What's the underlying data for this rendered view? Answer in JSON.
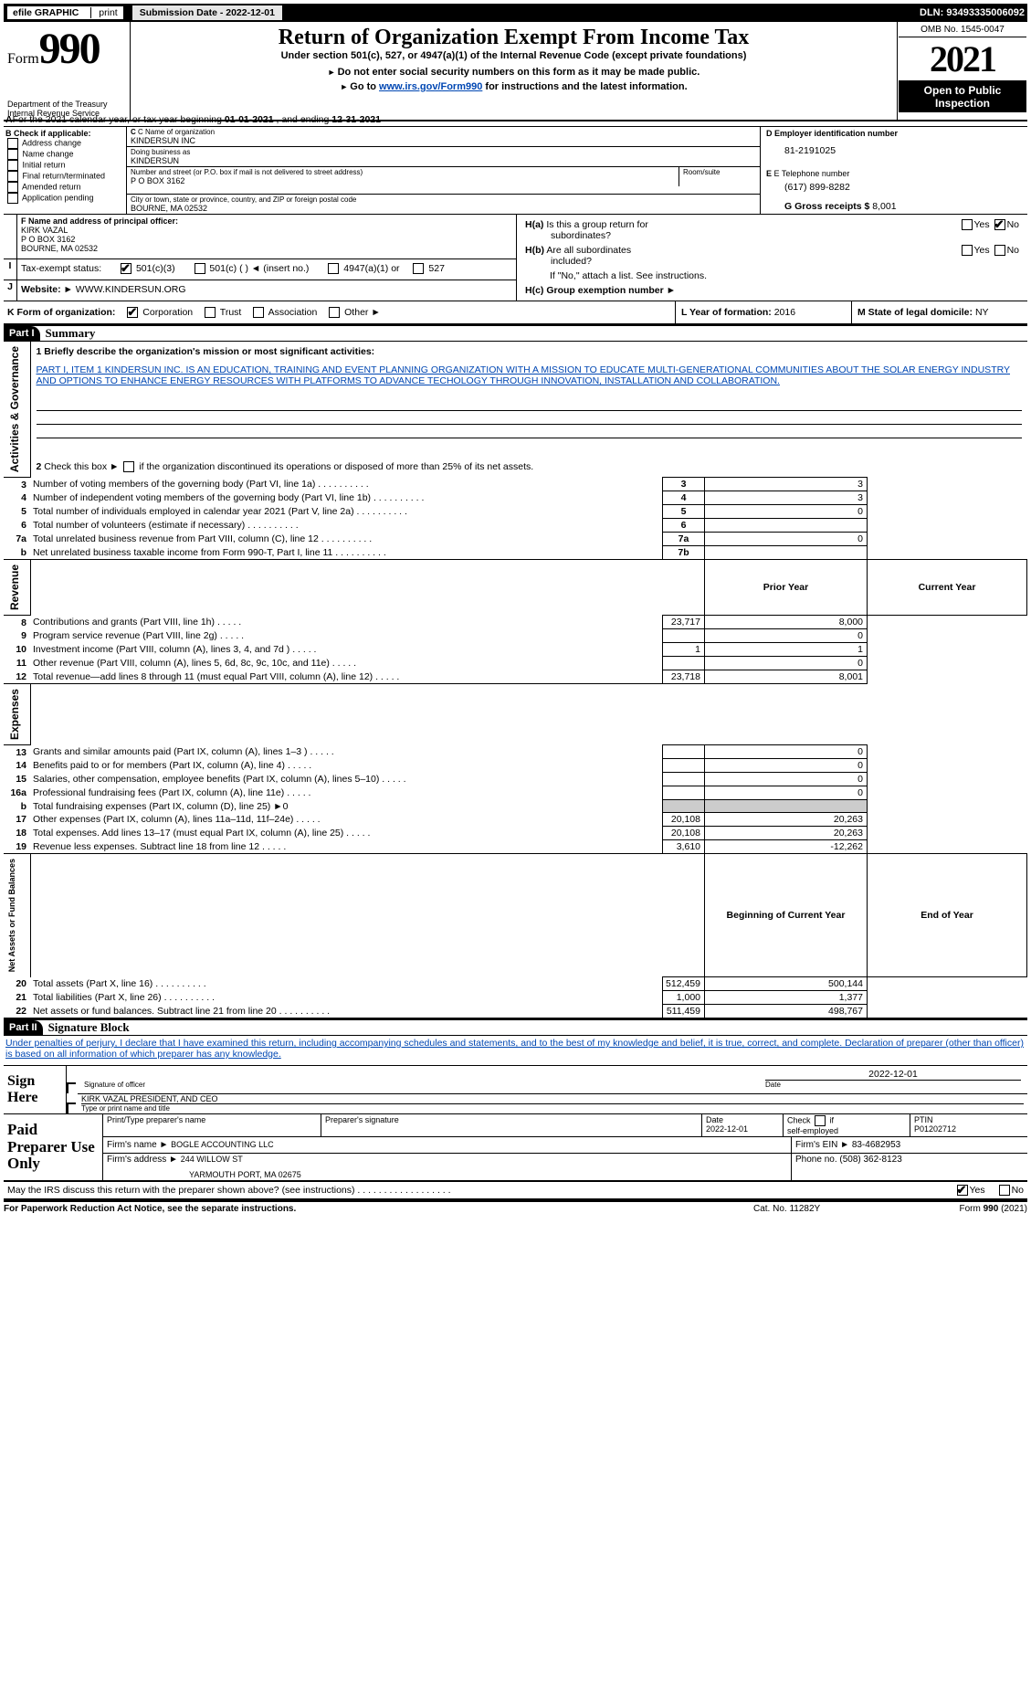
{
  "header_bar": {
    "efile": "efile GRAPHIC",
    "print": "print",
    "sub_label": "Submission Date - 2022-12-01",
    "dln": "DLN: 93493335006092"
  },
  "top_left": {
    "form": "Form",
    "num": "990",
    "dept": "Department of the Treasury",
    "irs": "Internal Revenue Service"
  },
  "top_mid": {
    "title": "Return of Organization Exempt From Income Tax",
    "sub1": "Under section 501(c), 527, or 4947(a)(1) of the Internal Revenue Code (except private foundations)",
    "sub2": "Do not enter social security numbers on this form as it may be made public.",
    "sub3_pre": "Go to ",
    "sub3_link": "www.irs.gov/Form990",
    "sub3_post": " for instructions and the latest information."
  },
  "top_right": {
    "omb": "OMB No. 1545-0047",
    "year": "2021",
    "open": "Open to Public Inspection"
  },
  "line_a": {
    "text_pre": "For the 2021 calendar year, or tax year beginning ",
    "begin": "01-01-2021",
    "text_mid": " , and ending ",
    "end": "12-31-2021"
  },
  "box_b": {
    "label": "B Check if applicable:",
    "items": [
      "Address change",
      "Name change",
      "Initial return",
      "Final return/terminated",
      "Amended return",
      "Application pending"
    ]
  },
  "box_c": {
    "label": "C Name of organization",
    "name": "KINDERSUN INC",
    "dba_label": "Doing business as",
    "dba": "KINDERSUN",
    "street_label": "Number and street (or P.O. box if mail is not delivered to street address)",
    "room_label": "Room/suite",
    "street": "P O BOX 3162",
    "city_label": "City or town, state or province, country, and ZIP or foreign postal code",
    "city": "BOURNE, MA  02532"
  },
  "box_d": {
    "label": "D Employer identification number",
    "val": "81-2191025"
  },
  "box_e": {
    "label": "E Telephone number",
    "val": "(617) 899-8282"
  },
  "box_g": {
    "label_pre": "G Gross receipts $ ",
    "val": "8,001"
  },
  "box_f": {
    "label": "F  Name and address of principal officer:",
    "l1": "KIRK VAZAL",
    "l2": "P O BOX 3162",
    "l3": "BOURNE, MA  02532"
  },
  "box_h": {
    "a_label": "H(a)  Is this a group return for subordinates?",
    "b_label": "H(b)  Are all subordinates included?",
    "note": "If \"No,\" attach a list. See instructions.",
    "c_label": "H(c)  Group exemption number ►",
    "yes": "Yes",
    "no": "No"
  },
  "box_i": {
    "label": "Tax-exempt status:",
    "o1": "501(c)(3)",
    "o2": "501(c) (    ) ◄ (insert no.)",
    "o3": "4947(a)(1) or",
    "o4": "527"
  },
  "box_j": {
    "label": "J",
    "website_label": "Website: ►",
    "website": "WWW.KINDERSUN.ORG"
  },
  "box_k": {
    "label": "K Form of organization:",
    "o1": "Corporation",
    "o2": "Trust",
    "o3": "Association",
    "o4": "Other ►"
  },
  "box_l": {
    "label": "L Year of formation: ",
    "val": "2016"
  },
  "box_m": {
    "label": "M State of legal domicile: ",
    "val": "NY"
  },
  "part1": {
    "header": "Part I",
    "title": "Summary",
    "q1_label": "1  Briefly describe the organization's mission or most significant activities:",
    "q1_text": "PART I, ITEM 1 KINDERSUN INC. IS AN EDUCATION, TRAINING AND EVENT PLANNING ORGANIZATION WITH A MISSION TO EDUCATE MULTI-GENERATIONAL COMMUNITIES ABOUT THE SOLAR ENERGY INDUSTRY AND OPTIONS TO ENHANCE ENERGY RESOURCES WITH PLATFORMS TO ADVANCE TECHOLOGY THROUGH INNOVATION, INSTALLATION AND COLLABORATION.",
    "q2": "2   Check this box ►        if the organization discontinued its operations or disposed of more than 25% of its net assets.",
    "sections": {
      "activities": {
        "label": "Activities & Governance",
        "rows": [
          {
            "n": "3",
            "t": "Number of voting members of the governing body (Part VI, line 1a)",
            "box": "3",
            "v": "3"
          },
          {
            "n": "4",
            "t": "Number of independent voting members of the governing body (Part VI, line 1b)",
            "box": "4",
            "v": "3"
          },
          {
            "n": "5",
            "t": "Total number of individuals employed in calendar year 2021 (Part V, line 2a)",
            "box": "5",
            "v": "0"
          },
          {
            "n": "6",
            "t": "Total number of volunteers (estimate if necessary)",
            "box": "6",
            "v": ""
          },
          {
            "n": "7a",
            "t": "Total unrelated business revenue from Part VIII, column (C), line 12",
            "box": "7a",
            "v": "0"
          },
          {
            "n": "b",
            "t": "Net unrelated business taxable income from Form 990-T, Part I, line 11",
            "box": "7b",
            "v": ""
          }
        ]
      },
      "revenue": {
        "label": "Revenue",
        "col1": "Prior Year",
        "col2": "Current Year",
        "rows": [
          {
            "n": "8",
            "t": "Contributions and grants (Part VIII, line 1h)",
            "p": "23,717",
            "c": "8,000"
          },
          {
            "n": "9",
            "t": "Program service revenue (Part VIII, line 2g)",
            "p": "",
            "c": "0"
          },
          {
            "n": "10",
            "t": "Investment income (Part VIII, column (A), lines 3, 4, and 7d )",
            "p": "1",
            "c": "1"
          },
          {
            "n": "11",
            "t": "Other revenue (Part VIII, column (A), lines 5, 6d, 8c, 9c, 10c, and 11e)",
            "p": "",
            "c": "0"
          },
          {
            "n": "12",
            "t": "Total revenue—add lines 8 through 11 (must equal Part VIII, column (A), line 12)",
            "p": "23,718",
            "c": "8,001"
          }
        ]
      },
      "expenses": {
        "label": "Expenses",
        "rows": [
          {
            "n": "13",
            "t": "Grants and similar amounts paid (Part IX, column (A), lines 1–3 )",
            "p": "",
            "c": "0"
          },
          {
            "n": "14",
            "t": "Benefits paid to or for members (Part IX, column (A), line 4)",
            "p": "",
            "c": "0"
          },
          {
            "n": "15",
            "t": "Salaries, other compensation, employee benefits (Part IX, column (A), lines 5–10)",
            "p": "",
            "c": "0"
          },
          {
            "n": "16a",
            "t": "Professional fundraising fees (Part IX, column (A), line 11e)",
            "p": "",
            "c": "0"
          },
          {
            "n": "b",
            "t": "Total fundraising expenses (Part IX, column (D), line 25) ►0",
            "p": "gray",
            "c": "gray"
          },
          {
            "n": "17",
            "t": "Other expenses (Part IX, column (A), lines 11a–11d, 11f–24e)",
            "p": "20,108",
            "c": "20,263"
          },
          {
            "n": "18",
            "t": "Total expenses. Add lines 13–17 (must equal Part IX, column (A), line 25)",
            "p": "20,108",
            "c": "20,263"
          },
          {
            "n": "19",
            "t": "Revenue less expenses. Subtract line 18 from line 12",
            "p": "3,610",
            "c": "-12,262"
          }
        ]
      },
      "netassets": {
        "label": "Net Assets or Fund Balances",
        "col1": "Beginning of Current Year",
        "col2": "End of Year",
        "rows": [
          {
            "n": "20",
            "t": "Total assets (Part X, line 16)",
            "p": "512,459",
            "c": "500,144"
          },
          {
            "n": "21",
            "t": "Total liabilities (Part X, line 26)",
            "p": "1,000",
            "c": "1,377"
          },
          {
            "n": "22",
            "t": "Net assets or fund balances. Subtract line 21 from line 20",
            "p": "511,459",
            "c": "498,767"
          }
        ]
      }
    }
  },
  "part2": {
    "header": "Part II",
    "title": "Signature Block",
    "penalties": "Under penalties of perjury, I declare that I have examined this return, including accompanying schedules and statements, and to the best of my knowledge and belief, it is true, correct, and complete. Declaration of preparer (other than officer) is based on all information of which preparer has any knowledge.",
    "sign_here": "Sign Here",
    "sig_officer": "Signature of officer",
    "date": "Date",
    "sig_date": "2022-12-01",
    "name_title": "KIRK VAZAL  PRESIDENT, AND CEO",
    "type_name": "Type or print name and title",
    "paid_prep": "Paid Preparer Use Only",
    "p_name_label": "Print/Type preparer's name",
    "p_sig_label": "Preparer's signature",
    "p_date_label": "Date",
    "p_date": "2022-12-01",
    "p_check": "Check          if self-employed",
    "ptin_label": "PTIN",
    "ptin": "P01202712",
    "firm_name_label": "Firm's name    ►",
    "firm_name": "BOGLE ACCOUNTING LLC",
    "firm_ein_label": "Firm's EIN ►",
    "firm_ein": "83-4682953",
    "firm_addr_label": "Firm's address ►",
    "firm_addr1": "244 WILLOW ST",
    "firm_addr2": "YARMOUTH PORT, MA  02675",
    "phone_label": "Phone no. ",
    "phone": "(508) 362-8123",
    "may_irs": "May the IRS discuss this return with the preparer shown above? (see instructions)",
    "yes": "Yes",
    "no": "No"
  },
  "footer": {
    "left": "For Paperwork Reduction Act Notice, see the separate instructions.",
    "mid": "Cat. No. 11282Y",
    "right_pre": "Form ",
    "right_b": "990",
    "right_post": " (2021)"
  }
}
